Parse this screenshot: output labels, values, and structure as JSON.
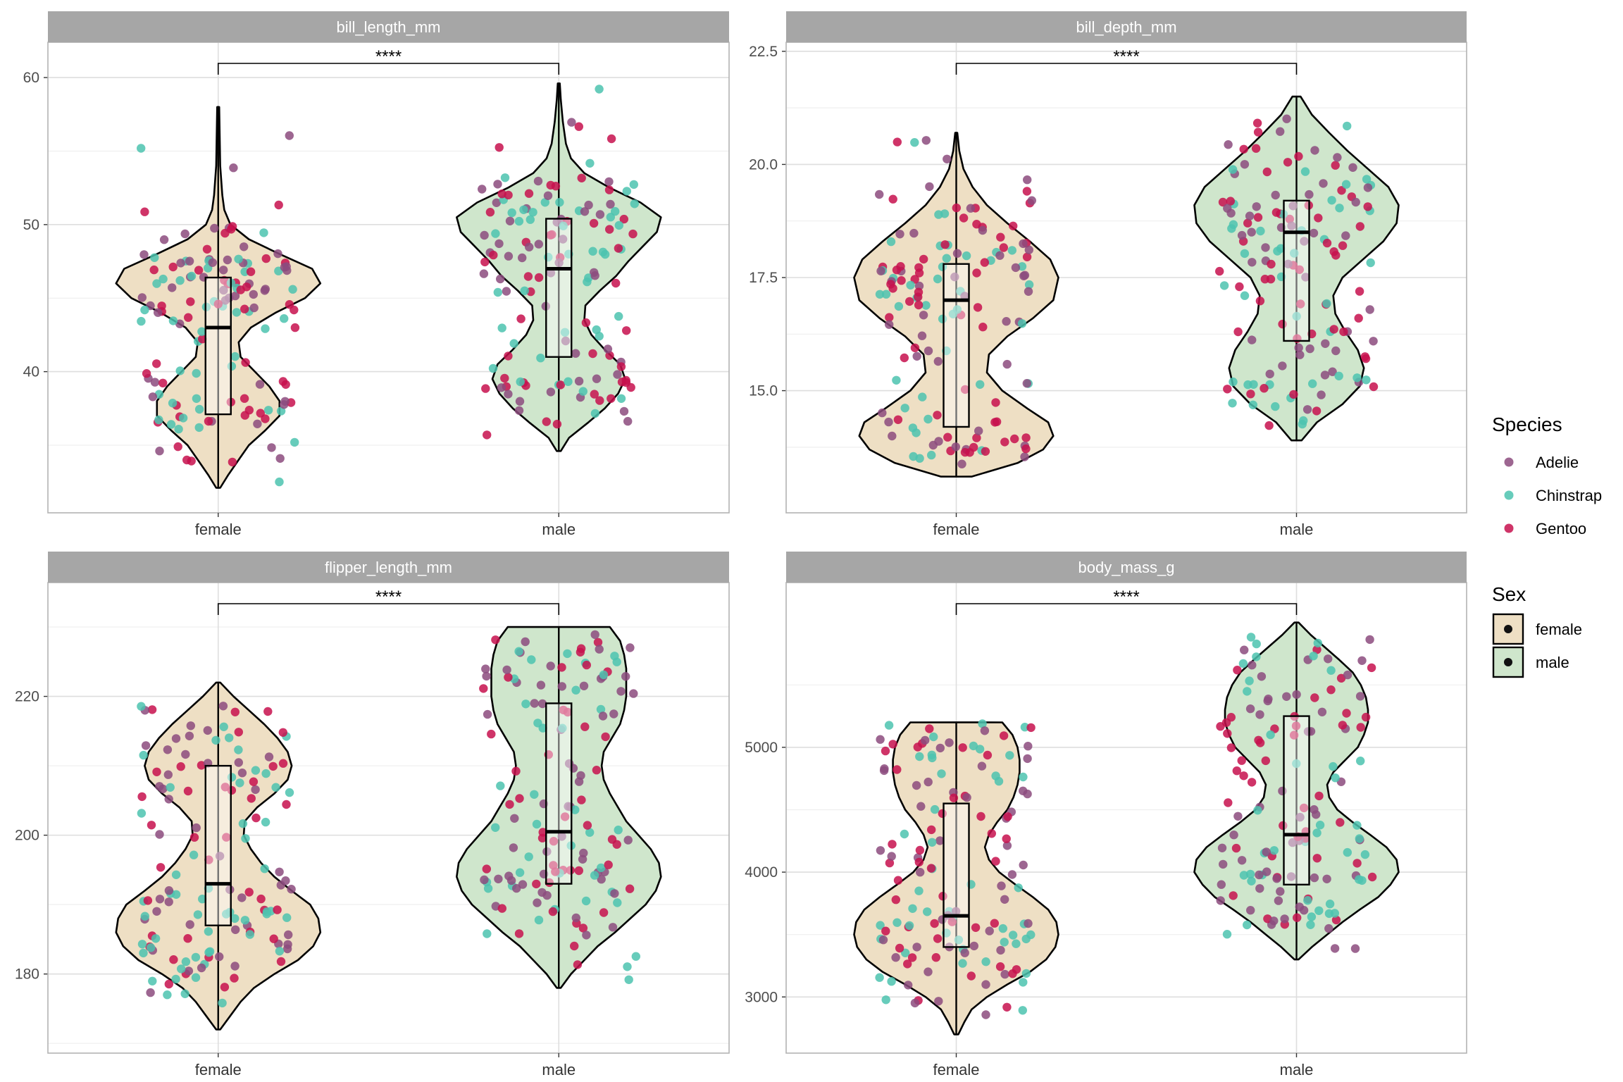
{
  "colors": {
    "female_fill": "#EEDFC4",
    "male_fill": "#CFE6CC",
    "adelie": "#8C4B7E",
    "chinstrap": "#4CC3AF",
    "gentoo": "#C7114E",
    "strip": "#A6A6A6",
    "grid_major": "#DEDEDE",
    "grid_minor": "#EFEFEF",
    "panel_border": "#B3B3B3"
  },
  "legend": {
    "species_title": "Species",
    "species": [
      {
        "label": "Adelie",
        "color_key": "adelie"
      },
      {
        "label": "Chinstrap",
        "color_key": "chinstrap"
      },
      {
        "label": "Gentoo",
        "color_key": "gentoo"
      }
    ],
    "sex_title": "Sex",
    "sex": [
      {
        "label": "female",
        "color_key": "female_fill"
      },
      {
        "label": "male",
        "color_key": "male_fill"
      }
    ]
  },
  "chart_data": [
    {
      "type": "violin",
      "title": "bill_length_mm",
      "categories": [
        "female",
        "male"
      ],
      "ylim": [
        30.4,
        62.4
      ],
      "yticks": [
        40,
        50,
        60
      ],
      "significance": "****",
      "groups": [
        {
          "name": "female",
          "box": {
            "q1": 37.1,
            "median": 43.0,
            "q3": 46.4
          },
          "violin_min": 32.1,
          "violin_max": 58.0,
          "density": [
            [
              32.1,
              0.02
            ],
            [
              33,
              0.1
            ],
            [
              34,
              0.2
            ],
            [
              35,
              0.3
            ],
            [
              36,
              0.46
            ],
            [
              37,
              0.6
            ],
            [
              38,
              0.6
            ],
            [
              39,
              0.5
            ],
            [
              40,
              0.36
            ],
            [
              41,
              0.22
            ],
            [
              42,
              0.2
            ],
            [
              43,
              0.32
            ],
            [
              44,
              0.56
            ],
            [
              45,
              0.85
            ],
            [
              46,
              1.0
            ],
            [
              47,
              0.92
            ],
            [
              48,
              0.6
            ],
            [
              49,
              0.3
            ],
            [
              50,
              0.12
            ],
            [
              51,
              0.06
            ],
            [
              52,
              0.04
            ],
            [
              54,
              0.02
            ],
            [
              56,
              0.015
            ],
            [
              58,
              0.01
            ]
          ]
        },
        {
          "name": "male",
          "box": {
            "q1": 41.0,
            "median": 47.0,
            "q3": 50.4
          },
          "violin_min": 34.6,
          "violin_max": 59.6,
          "density": [
            [
              34.6,
              0.02
            ],
            [
              35.5,
              0.1
            ],
            [
              36.5,
              0.28
            ],
            [
              37.5,
              0.45
            ],
            [
              38.5,
              0.58
            ],
            [
              39.5,
              0.65
            ],
            [
              40.5,
              0.6
            ],
            [
              41.5,
              0.45
            ],
            [
              42.5,
              0.32
            ],
            [
              43.5,
              0.25
            ],
            [
              44.5,
              0.26
            ],
            [
              45.5,
              0.4
            ],
            [
              46.5,
              0.56
            ],
            [
              47.5,
              0.68
            ],
            [
              48.5,
              0.82
            ],
            [
              49.5,
              0.96
            ],
            [
              50.5,
              1.0
            ],
            [
              51.5,
              0.8
            ],
            [
              52.5,
              0.5
            ],
            [
              53.5,
              0.25
            ],
            [
              54.5,
              0.12
            ],
            [
              55.5,
              0.07
            ],
            [
              57,
              0.04
            ],
            [
              58.5,
              0.02
            ],
            [
              59.6,
              0.01
            ]
          ]
        }
      ]
    },
    {
      "type": "violin",
      "title": "bill_depth_mm",
      "categories": [
        "female",
        "male"
      ],
      "ylim": [
        12.3,
        22.7
      ],
      "yticks": [
        15.0,
        17.5,
        20.0,
        22.5
      ],
      "significance": "****",
      "groups": [
        {
          "name": "female",
          "box": {
            "q1": 14.2,
            "median": 17.0,
            "q3": 17.8
          },
          "violin_min": 13.1,
          "violin_max": 20.7,
          "density": [
            [
              13.1,
              0.15
            ],
            [
              13.4,
              0.6
            ],
            [
              13.7,
              0.85
            ],
            [
              14.0,
              0.95
            ],
            [
              14.3,
              0.9
            ],
            [
              14.6,
              0.7
            ],
            [
              15.0,
              0.45
            ],
            [
              15.4,
              0.3
            ],
            [
              15.8,
              0.32
            ],
            [
              16.2,
              0.5
            ],
            [
              16.6,
              0.75
            ],
            [
              17.0,
              0.95
            ],
            [
              17.5,
              1.0
            ],
            [
              17.9,
              0.92
            ],
            [
              18.3,
              0.72
            ],
            [
              18.7,
              0.5
            ],
            [
              19.1,
              0.3
            ],
            [
              19.5,
              0.16
            ],
            [
              19.9,
              0.07
            ],
            [
              20.3,
              0.03
            ],
            [
              20.7,
              0.01
            ]
          ]
        },
        {
          "name": "male",
          "box": {
            "q1": 16.1,
            "median": 18.5,
            "q3": 19.2
          },
          "violin_min": 13.9,
          "violin_max": 21.5,
          "density": [
            [
              13.9,
              0.05
            ],
            [
              14.3,
              0.2
            ],
            [
              14.7,
              0.45
            ],
            [
              15.1,
              0.62
            ],
            [
              15.5,
              0.66
            ],
            [
              15.9,
              0.6
            ],
            [
              16.3,
              0.48
            ],
            [
              16.7,
              0.38
            ],
            [
              17.1,
              0.36
            ],
            [
              17.5,
              0.45
            ],
            [
              17.9,
              0.65
            ],
            [
              18.3,
              0.85
            ],
            [
              18.7,
              0.98
            ],
            [
              19.1,
              1.0
            ],
            [
              19.5,
              0.9
            ],
            [
              19.9,
              0.7
            ],
            [
              20.3,
              0.5
            ],
            [
              20.7,
              0.32
            ],
            [
              21.1,
              0.15
            ],
            [
              21.5,
              0.04
            ]
          ]
        }
      ]
    },
    {
      "type": "violin",
      "title": "flipper_length_mm",
      "categories": [
        "female",
        "male"
      ],
      "ylim": [
        168.6,
        236.4
      ],
      "yticks": [
        180,
        200,
        220
      ],
      "significance": "****",
      "groups": [
        {
          "name": "female",
          "box": {
            "q1": 187.0,
            "median": 193.0,
            "q3": 210.0
          },
          "violin_min": 172.0,
          "violin_max": 222.0,
          "density": [
            [
              172,
              0.02
            ],
            [
              174,
              0.12
            ],
            [
              176,
              0.22
            ],
            [
              178,
              0.35
            ],
            [
              180,
              0.55
            ],
            [
              182,
              0.78
            ],
            [
              184,
              0.93
            ],
            [
              186,
              1.0
            ],
            [
              188,
              0.98
            ],
            [
              190,
              0.9
            ],
            [
              192,
              0.72
            ],
            [
              194,
              0.55
            ],
            [
              196,
              0.42
            ],
            [
              198,
              0.32
            ],
            [
              200,
              0.25
            ],
            [
              202,
              0.26
            ],
            [
              204,
              0.38
            ],
            [
              206,
              0.55
            ],
            [
              208,
              0.68
            ],
            [
              210,
              0.72
            ],
            [
              212,
              0.68
            ],
            [
              214,
              0.58
            ],
            [
              216,
              0.45
            ],
            [
              218,
              0.3
            ],
            [
              220,
              0.15
            ],
            [
              222,
              0.02
            ]
          ]
        },
        {
          "name": "male",
          "box": {
            "q1": 193.0,
            "median": 200.5,
            "q3": 219.0
          },
          "violin_min": 178.0,
          "violin_max": 230.0,
          "density": [
            [
              178,
              0.02
            ],
            [
              180,
              0.12
            ],
            [
              182,
              0.25
            ],
            [
              184,
              0.38
            ],
            [
              186,
              0.55
            ],
            [
              188,
              0.7
            ],
            [
              190,
              0.85
            ],
            [
              192,
              0.95
            ],
            [
              194,
              1.0
            ],
            [
              196,
              0.98
            ],
            [
              198,
              0.9
            ],
            [
              200,
              0.78
            ],
            [
              202,
              0.66
            ],
            [
              204,
              0.58
            ],
            [
              206,
              0.5
            ],
            [
              208,
              0.44
            ],
            [
              210,
              0.42
            ],
            [
              212,
              0.44
            ],
            [
              214,
              0.52
            ],
            [
              216,
              0.6
            ],
            [
              218,
              0.64
            ],
            [
              220,
              0.66
            ],
            [
              222,
              0.66
            ],
            [
              224,
              0.66
            ],
            [
              226,
              0.64
            ],
            [
              228,
              0.6
            ],
            [
              230,
              0.5
            ]
          ]
        }
      ]
    },
    {
      "type": "violin",
      "title": "body_mass_g",
      "categories": [
        "female",
        "male"
      ],
      "ylim": [
        2550,
        6320
      ],
      "yticks": [
        3000,
        4000,
        5000
      ],
      "significance": "****",
      "groups": [
        {
          "name": "female",
          "box": {
            "q1": 3400,
            "median": 3650,
            "q3": 4550
          },
          "violin_min": 2700,
          "violin_max": 5200,
          "density": [
            [
              2700,
              0.02
            ],
            [
              2800,
              0.08
            ],
            [
              2900,
              0.15
            ],
            [
              3000,
              0.3
            ],
            [
              3100,
              0.5
            ],
            [
              3200,
              0.72
            ],
            [
              3300,
              0.88
            ],
            [
              3400,
              0.97
            ],
            [
              3500,
              1.0
            ],
            [
              3600,
              0.98
            ],
            [
              3700,
              0.9
            ],
            [
              3800,
              0.75
            ],
            [
              3900,
              0.58
            ],
            [
              4000,
              0.42
            ],
            [
              4100,
              0.32
            ],
            [
              4200,
              0.28
            ],
            [
              4300,
              0.32
            ],
            [
              4400,
              0.4
            ],
            [
              4500,
              0.5
            ],
            [
              4600,
              0.56
            ],
            [
              4700,
              0.6
            ],
            [
              4800,
              0.62
            ],
            [
              4900,
              0.62
            ],
            [
              5000,
              0.6
            ],
            [
              5100,
              0.55
            ],
            [
              5200,
              0.45
            ]
          ]
        },
        {
          "name": "male",
          "box": {
            "q1": 3900,
            "median": 4300,
            "q3": 5250
          },
          "violin_min": 3300,
          "violin_max": 6000,
          "density": [
            [
              3300,
              0.02
            ],
            [
              3400,
              0.15
            ],
            [
              3500,
              0.3
            ],
            [
              3600,
              0.45
            ],
            [
              3700,
              0.62
            ],
            [
              3800,
              0.8
            ],
            [
              3900,
              0.92
            ],
            [
              4000,
              1.0
            ],
            [
              4100,
              0.98
            ],
            [
              4200,
              0.88
            ],
            [
              4300,
              0.72
            ],
            [
              4400,
              0.55
            ],
            [
              4500,
              0.4
            ],
            [
              4600,
              0.32
            ],
            [
              4700,
              0.3
            ],
            [
              4800,
              0.36
            ],
            [
              4900,
              0.48
            ],
            [
              5000,
              0.6
            ],
            [
              5100,
              0.66
            ],
            [
              5200,
              0.7
            ],
            [
              5300,
              0.7
            ],
            [
              5400,
              0.68
            ],
            [
              5500,
              0.63
            ],
            [
              5600,
              0.55
            ],
            [
              5700,
              0.42
            ],
            [
              5800,
              0.28
            ],
            [
              5900,
              0.14
            ],
            [
              6000,
              0.02
            ]
          ]
        }
      ]
    }
  ]
}
